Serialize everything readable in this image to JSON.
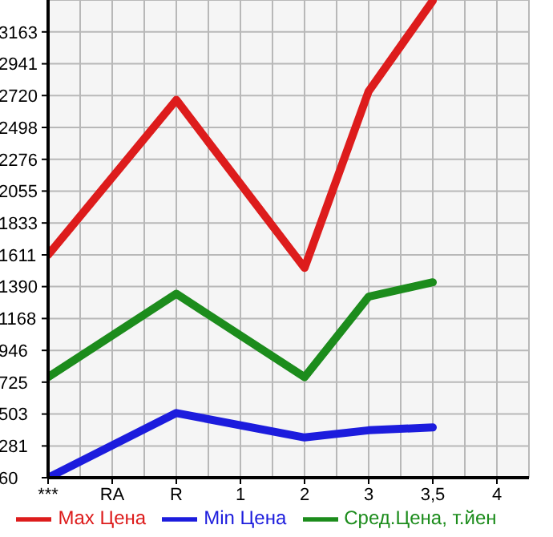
{
  "chart_data": {
    "type": "line",
    "categories": [
      "***",
      "RA",
      "R",
      "1",
      "2",
      "3",
      "3,5",
      "4"
    ],
    "series": [
      {
        "name": "Max Цена",
        "color": "#dd1c1c",
        "values": [
          1610,
          null,
          2690,
          null,
          1520,
          2750,
          3380,
          null
        ]
      },
      {
        "name": "Min Цена",
        "color": "#1c1cdd",
        "values": [
          60,
          null,
          510,
          null,
          340,
          390,
          410,
          null
        ]
      },
      {
        "name": "Сред.Цена, т.йен",
        "color": "#1c8c1c",
        "values": [
          760,
          null,
          1340,
          null,
          760,
          1320,
          1420,
          null
        ]
      }
    ],
    "ylim": [
      60,
      3385
    ],
    "yticks": [
      60,
      281,
      503,
      725,
      946,
      1168,
      1390,
      1611,
      1833,
      2055,
      2276,
      2498,
      2720,
      2941,
      3163
    ],
    "grid": true,
    "legend": "bottom",
    "line_style": "solid"
  }
}
